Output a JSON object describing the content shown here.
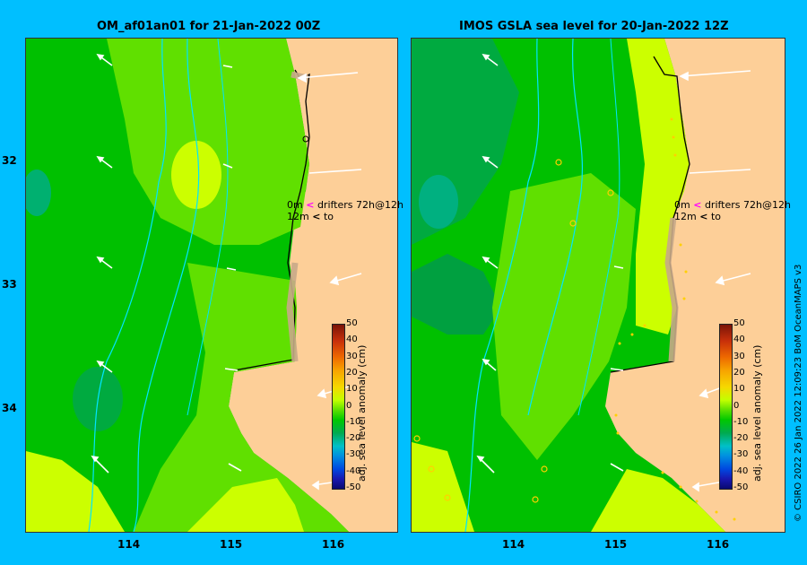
{
  "titles": {
    "left": "OM_af01an01 for 21-Jan-2022 00Z",
    "right": "IMOS GSLA sea level  for 20-Jan-2022 12Z"
  },
  "lat_labels": [
    "32",
    "33",
    "34"
  ],
  "lon_labels_left": [
    "114",
    "115",
    "116"
  ],
  "lon_labels_right": [
    "114",
    "115",
    "116"
  ],
  "drifter_legend": {
    "line1_depth": "0m",
    "line1_arrow": "<",
    "line1_text": "drifters 72h@12h",
    "line2_depth": "12m",
    "line2_arrow": "<",
    "line2_text": "to"
  },
  "colorbar": {
    "title": "adj. sea level anomaly (cm)",
    "ticks": [
      "50",
      "40",
      "30",
      "20",
      "10",
      "0",
      "-10",
      "-20",
      "-30",
      "-40",
      "-50"
    ]
  },
  "credit": "© CSIRO 2022   26 Jan 2022 12:09:23 BoM OceanMAPS v3",
  "colors": {
    "background": "#00bfff",
    "land": "#fdcf98",
    "coast_shelf": "#c8a888",
    "anomaly_green": "#00c000",
    "anomaly_light_green": "#60e000",
    "anomaly_yellow": "#ccff00",
    "anomaly_teal": "#00b070",
    "drifter_arrow_0m": "#ff00ff",
    "current_vector": "#ffffff"
  }
}
